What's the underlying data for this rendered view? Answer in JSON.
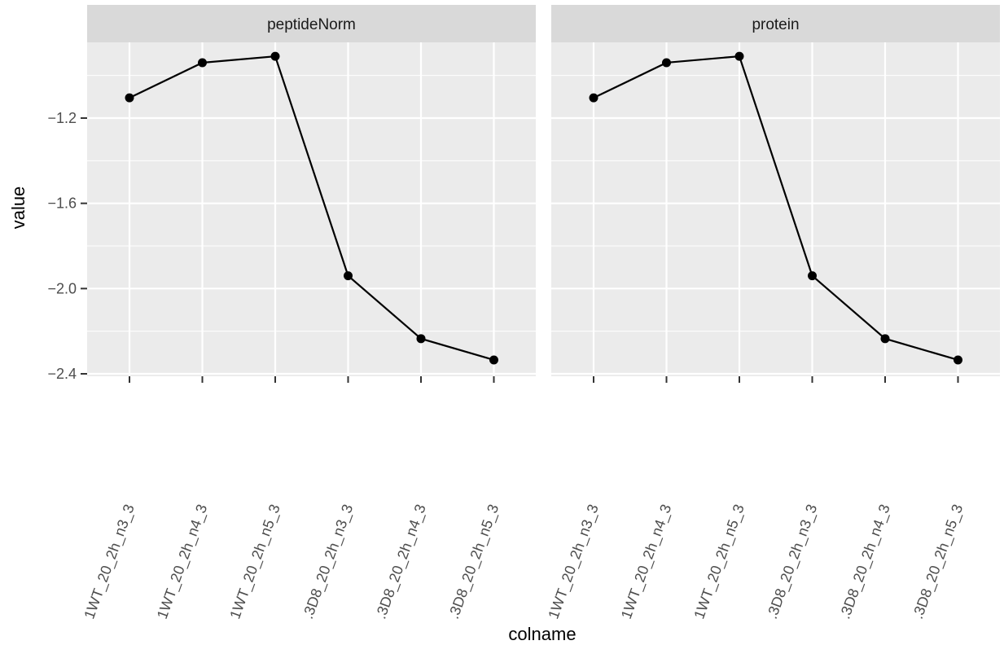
{
  "chart_data": {
    "type": "line",
    "xlabel": "colname",
    "ylabel": "value",
    "ylim": [
      -2.4,
      -0.85
    ],
    "yticks": [
      -1.2,
      -1.6,
      -2.0,
      -2.4
    ],
    "ytick_labels": [
      "−1.2",
      "−1.6",
      "−2.0",
      "−2.4"
    ],
    "categories": [
      "1WT_20_2h_n3_3",
      "1WT_20_2h_n4_3",
      "1WT_20_2h_n5_3",
      ".3D8_20_2h_n3_3",
      ".3D8_20_2h_n4_3",
      ".3D8_20_2h_n5_3"
    ],
    "grid": true,
    "legend": "none",
    "colors": {
      "panel_bg": "#ebebeb",
      "strip_bg": "#d9d9d9",
      "grid_major": "#ffffff",
      "line": "#000000"
    },
    "panels": [
      {
        "name": "peptideNorm",
        "values": [
          -1.105,
          -0.94,
          -0.91,
          -1.94,
          -2.235,
          -2.335
        ]
      },
      {
        "name": "protein",
        "values": [
          -1.105,
          -0.94,
          -0.91,
          -1.94,
          -2.235,
          -2.335
        ]
      }
    ]
  }
}
